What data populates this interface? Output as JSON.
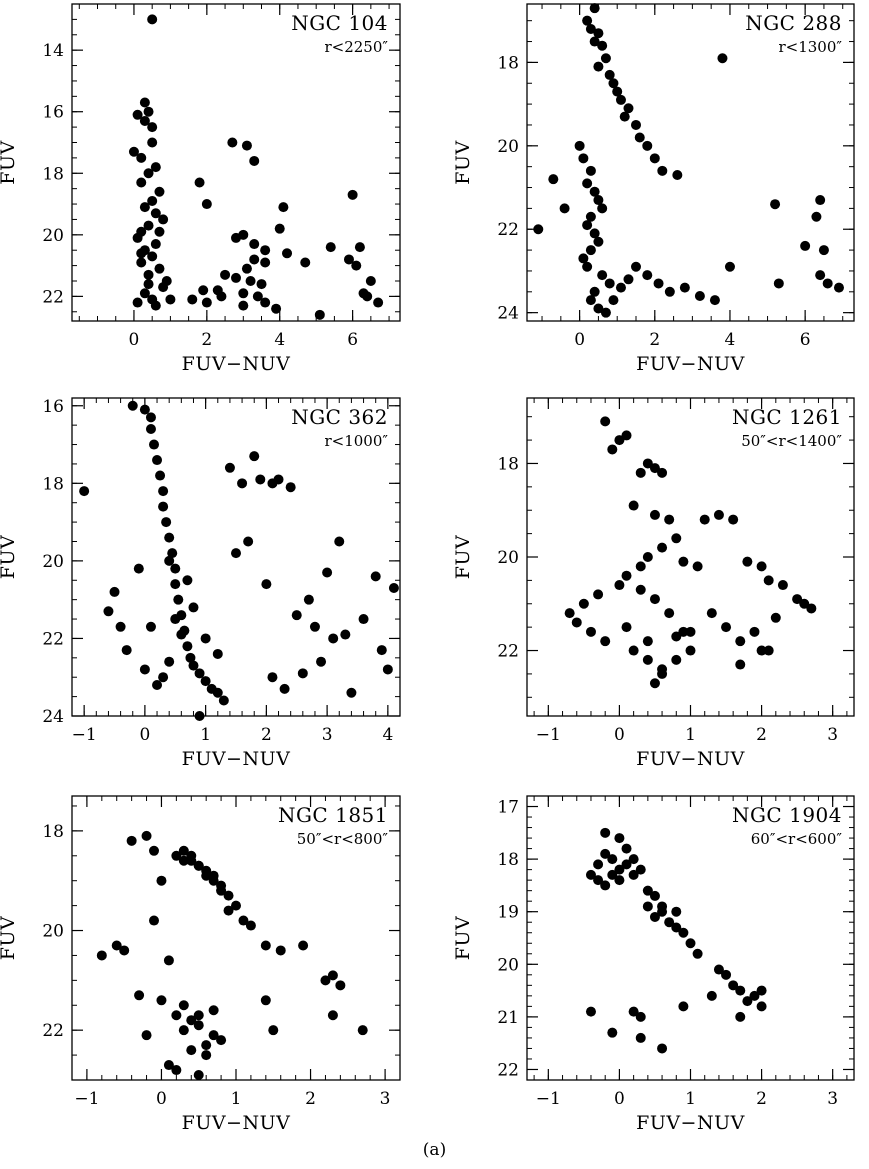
{
  "caption": "(a)",
  "chart_data": [
    {
      "type": "scatter",
      "title": "NGC 104",
      "subtitle": "r<2250″",
      "xlabel": "FUV−NUV",
      "ylabel": "FUV",
      "xlim": [
        -1.7,
        7.3
      ],
      "ylim": [
        22.8,
        12.5
      ],
      "y_inverted": true,
      "xticks": [
        0,
        2,
        4,
        6
      ],
      "yticks": [
        14,
        16,
        18,
        20,
        22
      ],
      "x": [
        0.5,
        0.3,
        0.4,
        0.1,
        0.3,
        0.5,
        0.5,
        0.0,
        0.2,
        0.6,
        0.4,
        0.2,
        0.7,
        0.5,
        0.3,
        0.6,
        0.8,
        0.4,
        0.2,
        0.1,
        0.6,
        0.3,
        0.5,
        0.2,
        0.7,
        0.4,
        0.9,
        0.8,
        0.3,
        0.5,
        0.1,
        0.6,
        1.0,
        0.4,
        0.2,
        0.7,
        1.8,
        2.7,
        3.1,
        3.3,
        4.1,
        6.0,
        2.0,
        2.8,
        3.0,
        3.3,
        3.6,
        4.0,
        4.2,
        5.4,
        6.2,
        3.1,
        3.3,
        3.6,
        4.7,
        5.9,
        6.1,
        2.5,
        2.8,
        3.2,
        3.5,
        6.5,
        1.9,
        2.3,
        3.0,
        3.4,
        6.3,
        1.6,
        2.0,
        2.4,
        3.0,
        3.6,
        3.9,
        6.4,
        6.7,
        5.1
      ],
      "y": [
        13.0,
        15.7,
        16.0,
        16.1,
        16.3,
        16.5,
        17.0,
        17.3,
        17.5,
        17.8,
        18.0,
        18.3,
        18.6,
        18.9,
        19.1,
        19.3,
        19.5,
        19.7,
        19.9,
        20.1,
        20.3,
        20.5,
        20.7,
        20.9,
        21.1,
        21.3,
        21.5,
        21.7,
        21.9,
        22.1,
        22.2,
        22.3,
        22.1,
        21.6,
        20.6,
        19.9,
        18.3,
        17.0,
        17.1,
        17.6,
        19.1,
        18.7,
        19.0,
        20.1,
        20.0,
        20.3,
        20.5,
        19.8,
        20.6,
        20.4,
        20.4,
        21.1,
        20.8,
        20.9,
        20.9,
        20.8,
        21.0,
        21.3,
        21.4,
        21.5,
        21.6,
        21.5,
        21.8,
        21.8,
        21.9,
        22.0,
        21.9,
        22.1,
        22.2,
        22.0,
        22.3,
        22.2,
        22.4,
        22.0,
        22.2,
        22.6
      ]
    },
    {
      "type": "scatter",
      "title": "NGC 288",
      "subtitle": "r<1300″",
      "xlabel": "FUV−NUV",
      "ylabel": "FUV",
      "xlim": [
        -1.4,
        7.3
      ],
      "ylim": [
        24.2,
        16.6
      ],
      "y_inverted": true,
      "xticks": [
        0,
        2,
        4,
        6
      ],
      "yticks": [
        18,
        20,
        22,
        24
      ],
      "x": [
        0.4,
        0.2,
        0.3,
        0.5,
        0.4,
        0.6,
        0.7,
        0.5,
        0.8,
        0.9,
        1.0,
        1.1,
        1.3,
        1.2,
        1.5,
        1.6,
        1.8,
        2.0,
        2.2,
        2.6,
        3.8,
        0.0,
        0.1,
        0.3,
        0.2,
        0.4,
        0.5,
        0.6,
        0.3,
        0.2,
        0.4,
        0.5,
        0.3,
        0.1,
        0.2,
        0.6,
        0.8,
        0.4,
        0.3,
        0.5,
        0.7,
        0.9,
        1.1,
        1.3,
        1.5,
        1.8,
        2.1,
        2.4,
        2.8,
        3.2,
        3.6,
        4.0,
        -0.7,
        -0.4,
        -1.1,
        5.2,
        6.4,
        6.3,
        6.0,
        6.5,
        5.3,
        6.4,
        6.6,
        6.9
      ],
      "y": [
        16.7,
        17.0,
        17.2,
        17.3,
        17.5,
        17.6,
        17.9,
        18.1,
        18.3,
        18.5,
        18.7,
        18.9,
        19.1,
        19.3,
        19.5,
        19.8,
        20.0,
        20.3,
        20.6,
        20.7,
        17.9,
        20.0,
        20.3,
        20.6,
        20.9,
        21.1,
        21.3,
        21.5,
        21.7,
        21.9,
        22.1,
        22.3,
        22.5,
        22.7,
        22.9,
        23.1,
        23.3,
        23.5,
        23.7,
        23.9,
        24.0,
        23.7,
        23.4,
        23.2,
        22.9,
        23.1,
        23.3,
        23.5,
        23.4,
        23.6,
        23.7,
        22.9,
        20.8,
        21.5,
        22.0,
        21.4,
        21.3,
        21.7,
        22.4,
        22.5,
        23.3,
        23.1,
        23.3,
        23.4
      ]
    },
    {
      "type": "scatter",
      "title": "NGC 362",
      "subtitle": "r<1000″",
      "xlabel": "FUV−NUV",
      "ylabel": "FUV",
      "xlim": [
        -1.2,
        4.2
      ],
      "ylim": [
        24.0,
        15.8
      ],
      "y_inverted": true,
      "xticks": [
        -1,
        0,
        1,
        2,
        3,
        4
      ],
      "yticks": [
        16,
        18,
        20,
        22,
        24
      ],
      "x": [
        -1.0,
        -0.2,
        0.0,
        0.1,
        0.1,
        0.15,
        0.2,
        0.25,
        0.3,
        0.3,
        0.35,
        0.4,
        0.45,
        0.5,
        0.5,
        0.55,
        0.6,
        0.65,
        0.7,
        0.75,
        0.8,
        0.9,
        1.0,
        1.1,
        1.2,
        1.3,
        0.2,
        0.3,
        0.4,
        0.6,
        0.5,
        0.8,
        1.0,
        0.7,
        0.4,
        0.1,
        -0.3,
        -0.4,
        -0.5,
        -0.6,
        -0.1,
        0.0,
        1.4,
        1.6,
        1.8,
        1.9,
        2.1,
        2.2,
        2.4,
        1.5,
        1.7,
        2.0,
        2.5,
        2.8,
        3.2,
        3.0,
        2.7,
        3.3,
        3.8,
        4.1,
        3.9,
        4.0,
        3.4,
        3.1,
        2.9,
        3.6,
        2.3,
        2.6,
        1.2,
        2.1,
        0.9
      ],
      "y": [
        18.2,
        16.0,
        16.1,
        16.3,
        16.6,
        17.0,
        17.4,
        17.8,
        18.2,
        18.6,
        19.0,
        19.4,
        19.8,
        20.2,
        20.6,
        21.0,
        21.4,
        21.8,
        22.2,
        22.5,
        22.7,
        22.9,
        23.1,
        23.3,
        23.4,
        23.6,
        23.2,
        23.0,
        22.6,
        21.9,
        21.5,
        21.2,
        22.0,
        20.5,
        20.0,
        21.7,
        22.3,
        21.7,
        20.8,
        21.3,
        20.2,
        22.8,
        17.6,
        18.0,
        17.3,
        17.9,
        18.0,
        17.9,
        18.1,
        19.8,
        19.5,
        20.6,
        21.4,
        21.7,
        19.5,
        20.3,
        21.0,
        21.9,
        20.4,
        20.7,
        22.3,
        22.8,
        23.4,
        22.0,
        22.6,
        21.5,
        23.3,
        22.9,
        22.4,
        23.0,
        24.0
      ]
    },
    {
      "type": "scatter",
      "title": "NGC 1261",
      "subtitle": "50″<r<1400″",
      "xlabel": "FUV−NUV",
      "ylabel": "FUV",
      "xlim": [
        -1.3,
        3.3
      ],
      "ylim": [
        23.4,
        16.6
      ],
      "y_inverted": true,
      "xticks": [
        -1,
        0,
        1,
        2,
        3
      ],
      "yticks": [
        18,
        20,
        22
      ],
      "x": [
        -0.2,
        -0.1,
        0.0,
        0.1,
        0.4,
        0.5,
        0.6,
        0.3,
        0.2,
        0.5,
        0.7,
        0.8,
        0.6,
        0.4,
        0.3,
        0.1,
        0.0,
        -0.3,
        -0.5,
        -0.7,
        -0.6,
        -0.4,
        -0.2,
        0.2,
        0.4,
        0.6,
        0.8,
        1.0,
        0.9,
        0.7,
        0.5,
        0.3,
        0.1,
        0.5,
        0.6,
        0.4,
        1.2,
        1.4,
        1.6,
        1.8,
        2.0,
        2.1,
        2.3,
        2.5,
        2.7,
        2.6,
        2.2,
        1.9,
        1.7,
        1.5,
        1.3,
        1.0,
        0.8,
        2.1,
        2.0,
        1.7,
        0.9,
        1.1
      ],
      "y": [
        17.1,
        17.7,
        17.5,
        17.4,
        18.0,
        18.1,
        18.2,
        18.2,
        18.9,
        19.1,
        19.2,
        19.6,
        19.8,
        20.0,
        20.2,
        20.4,
        20.6,
        20.8,
        21.0,
        21.2,
        21.4,
        21.6,
        21.8,
        22.0,
        22.2,
        22.4,
        22.2,
        22.0,
        21.6,
        21.2,
        20.9,
        20.7,
        21.5,
        22.7,
        22.5,
        21.8,
        19.2,
        19.1,
        19.2,
        20.1,
        20.2,
        20.5,
        20.6,
        20.9,
        21.1,
        21.0,
        21.3,
        21.6,
        21.8,
        21.5,
        21.2,
        21.6,
        21.7,
        22.0,
        22.0,
        22.3,
        20.1,
        20.2
      ]
    },
    {
      "type": "scatter",
      "title": "NGC 1851",
      "subtitle": "50″<r<800″",
      "xlabel": "FUV−NUV",
      "ylabel": "FUV",
      "xlim": [
        -1.2,
        3.2
      ],
      "ylim": [
        23.0,
        17.3
      ],
      "y_inverted": true,
      "xticks": [
        -1,
        0,
        1,
        2,
        3
      ],
      "yticks": [
        18,
        20,
        22
      ],
      "x": [
        -0.4,
        -0.2,
        -0.1,
        0.2,
        0.3,
        0.4,
        0.5,
        0.6,
        0.7,
        0.8,
        0.9,
        1.0,
        1.1,
        1.2,
        0.3,
        0.4,
        0.6,
        0.5,
        0.8,
        0.7,
        0.9,
        1.4,
        1.6,
        1.9,
        2.2,
        2.3,
        2.4,
        2.3,
        2.7,
        -0.8,
        -0.6,
        -0.5,
        -0.3,
        -0.2,
        -0.1,
        0.0,
        0.1,
        0.2,
        0.3,
        0.4,
        0.5,
        0.6,
        0.7,
        0.8,
        0.1,
        0.2,
        0.4,
        0.5,
        0.6,
        0.3,
        0.7,
        1.4,
        1.5,
        0.5,
        0.0
      ],
      "y": [
        18.2,
        18.1,
        18.4,
        18.5,
        18.4,
        18.6,
        18.7,
        18.8,
        18.9,
        19.1,
        19.3,
        19.5,
        19.8,
        19.9,
        18.6,
        18.5,
        18.9,
        18.7,
        19.2,
        19.0,
        19.6,
        20.3,
        20.4,
        20.3,
        21.0,
        20.9,
        21.1,
        21.7,
        22.0,
        20.5,
        20.3,
        20.4,
        21.3,
        22.1,
        19.8,
        19.0,
        20.6,
        21.7,
        22.0,
        21.8,
        21.9,
        22.3,
        22.1,
        22.2,
        22.7,
        22.8,
        22.4,
        22.9,
        22.5,
        21.5,
        21.6,
        21.4,
        22.0,
        21.7,
        21.4
      ]
    },
    {
      "type": "scatter",
      "title": "NGC 1904",
      "subtitle": "60″<r<600″",
      "xlabel": "FUV−NUV",
      "ylabel": "FUV",
      "xlim": [
        -1.3,
        3.3
      ],
      "ylim": [
        22.2,
        16.8
      ],
      "y_inverted": true,
      "xticks": [
        -1,
        0,
        1,
        2,
        3
      ],
      "yticks": [
        17,
        18,
        19,
        20,
        21,
        22
      ],
      "x": [
        -0.4,
        -0.3,
        -0.2,
        -0.1,
        0.0,
        0.0,
        0.1,
        -0.2,
        -0.3,
        -0.1,
        0.2,
        0.1,
        0.3,
        0.0,
        -0.2,
        0.2,
        0.4,
        0.5,
        0.4,
        0.6,
        0.7,
        0.8,
        0.9,
        1.0,
        1.1,
        1.4,
        1.5,
        1.6,
        1.7,
        1.8,
        1.9,
        2.0,
        2.0,
        1.7,
        1.3,
        0.6,
        0.5,
        0.8,
        -0.4,
        -0.1,
        0.2,
        0.3,
        0.3,
        0.9,
        0.6
      ],
      "y": [
        18.3,
        18.1,
        17.9,
        18.0,
        17.6,
        18.2,
        18.1,
        17.5,
        18.4,
        18.3,
        18.0,
        17.8,
        18.2,
        18.4,
        18.5,
        18.3,
        18.6,
        18.7,
        18.9,
        19.0,
        19.2,
        19.3,
        19.4,
        19.6,
        19.8,
        20.1,
        20.2,
        20.4,
        20.5,
        20.7,
        20.6,
        20.8,
        20.5,
        21.0,
        20.6,
        18.9,
        19.1,
        19.0,
        20.9,
        21.3,
        20.9,
        21.0,
        21.4,
        20.8,
        21.6
      ]
    }
  ]
}
